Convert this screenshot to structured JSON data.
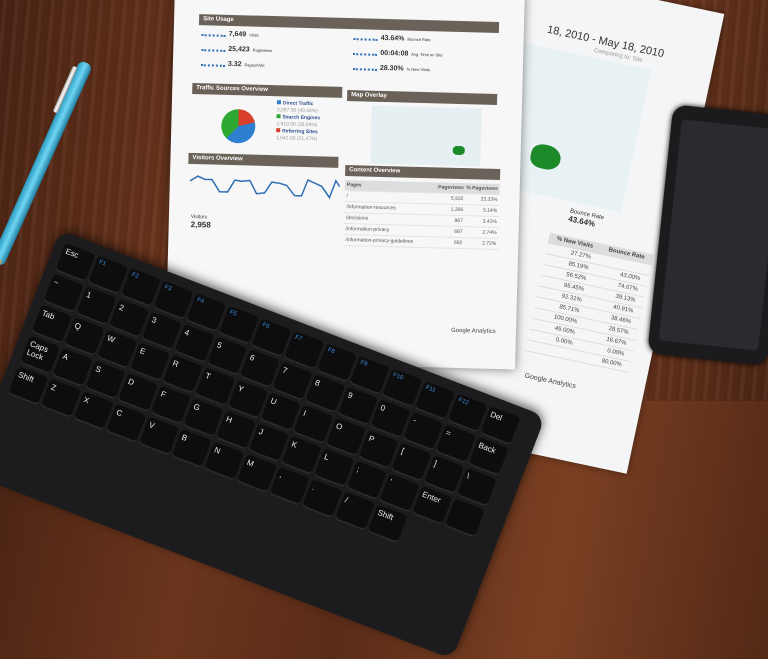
{
  "report_main": {
    "site_usage_title": "Site Usage",
    "metrics": [
      {
        "value": "7,649",
        "label": "Visits"
      },
      {
        "value": "25,423",
        "label": "Pageviews"
      },
      {
        "value": "3.32",
        "label": "Pages/Visit"
      },
      {
        "value": "43.64%",
        "label": "Bounce Rate"
      },
      {
        "value": "00:04:08",
        "label": "Avg. Time on Site"
      },
      {
        "value": "28.30%",
        "label": "% New Visits"
      }
    ],
    "traffic_title": "Traffic Sources Overview",
    "traffic": [
      {
        "label": "Direct Traffic",
        "detail": "3,097.00 (40.49%)",
        "color": "#2f7fd0"
      },
      {
        "label": "Search Engines",
        "detail": "2,910.00 (38.04%)",
        "color": "#2da831"
      },
      {
        "label": "Referring Sites",
        "detail": "1,642.00 (21.47%)",
        "color": "#d8402b"
      }
    ],
    "map_title": "Map Overlay",
    "visitors_title": "Visitors Overview",
    "visitors_label": "Visitors",
    "visitors_value": "2,958",
    "content_title": "Content Overview",
    "content_headers": [
      "Pages",
      "Pageviews",
      "% Pageviews"
    ],
    "content_rows": [
      [
        "/",
        "5,932",
        "23.33%"
      ],
      [
        "/information-resources",
        "1,306",
        "5.14%"
      ],
      [
        "/decisions",
        "867",
        "3.41%"
      ],
      [
        "/information-privacy",
        "697",
        "2.74%"
      ],
      [
        "/information-privacy-guidelines",
        "692",
        "2.72%"
      ]
    ],
    "footer": "Google Analytics"
  },
  "report_second": {
    "date_range": "18, 2010 - May 18, 2010",
    "comparing": "Comparing to: Site",
    "bounce_label": "Bounce Rate",
    "bounce_value": "43.64%",
    "headers": [
      "% New Visits",
      "Bounce Rate"
    ],
    "rows": [
      [
        "27.27%",
        ""
      ],
      [
        "85.19%",
        "43.00%"
      ],
      [
        "56.52%",
        "74.07%"
      ],
      [
        "95.45%",
        "39.13%"
      ],
      [
        "92.31%",
        "40.91%"
      ],
      [
        "85.71%",
        "38.46%"
      ],
      [
        "100.00%",
        "28.57%"
      ],
      [
        "45.00%",
        "16.67%"
      ],
      [
        "0.00%",
        "0.00%"
      ],
      [
        "",
        "80.00%"
      ]
    ],
    "footer": "Google Analytics"
  },
  "keyboard": {
    "keys": [
      "Esc",
      "F1",
      "F2",
      "F3",
      "F4",
      "F5",
      "F6",
      "F7",
      "F8",
      "F9",
      "F10",
      "F11",
      "F12",
      "Del",
      "~",
      "1",
      "2",
      "3",
      "4",
      "5",
      "6",
      "7",
      "8",
      "9",
      "0",
      "-",
      "=",
      "Back",
      "Tab",
      "Q",
      "W",
      "E",
      "R",
      "T",
      "Y",
      "U",
      "I",
      "O",
      "P",
      "[",
      "]",
      "\\",
      "Caps Lock",
      "A",
      "S",
      "D",
      "F",
      "G",
      "H",
      "J",
      "K",
      "L",
      ";",
      "'",
      "Enter",
      "",
      "Shift",
      "Z",
      "X",
      "C",
      "V",
      "B",
      "N",
      "M",
      ",",
      ".",
      "/",
      "Shift"
    ]
  }
}
